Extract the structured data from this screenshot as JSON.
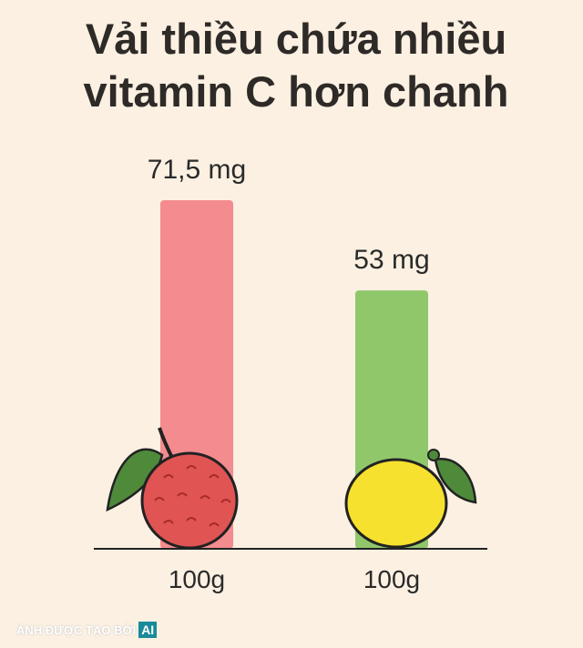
{
  "chart_data": {
    "type": "bar",
    "title": "Vải thiều chứa nhiều vitamin C hơn chanh",
    "categories": [
      "100g",
      "100g"
    ],
    "values": [
      71.5,
      53
    ],
    "value_labels": [
      "71,5 mg",
      "53 mg"
    ],
    "colors": [
      "#f38b8f",
      "#90c76b"
    ],
    "annotations": [
      "ẢNH ĐƯỢC TẠO BỞI",
      "AI"
    ]
  }
}
